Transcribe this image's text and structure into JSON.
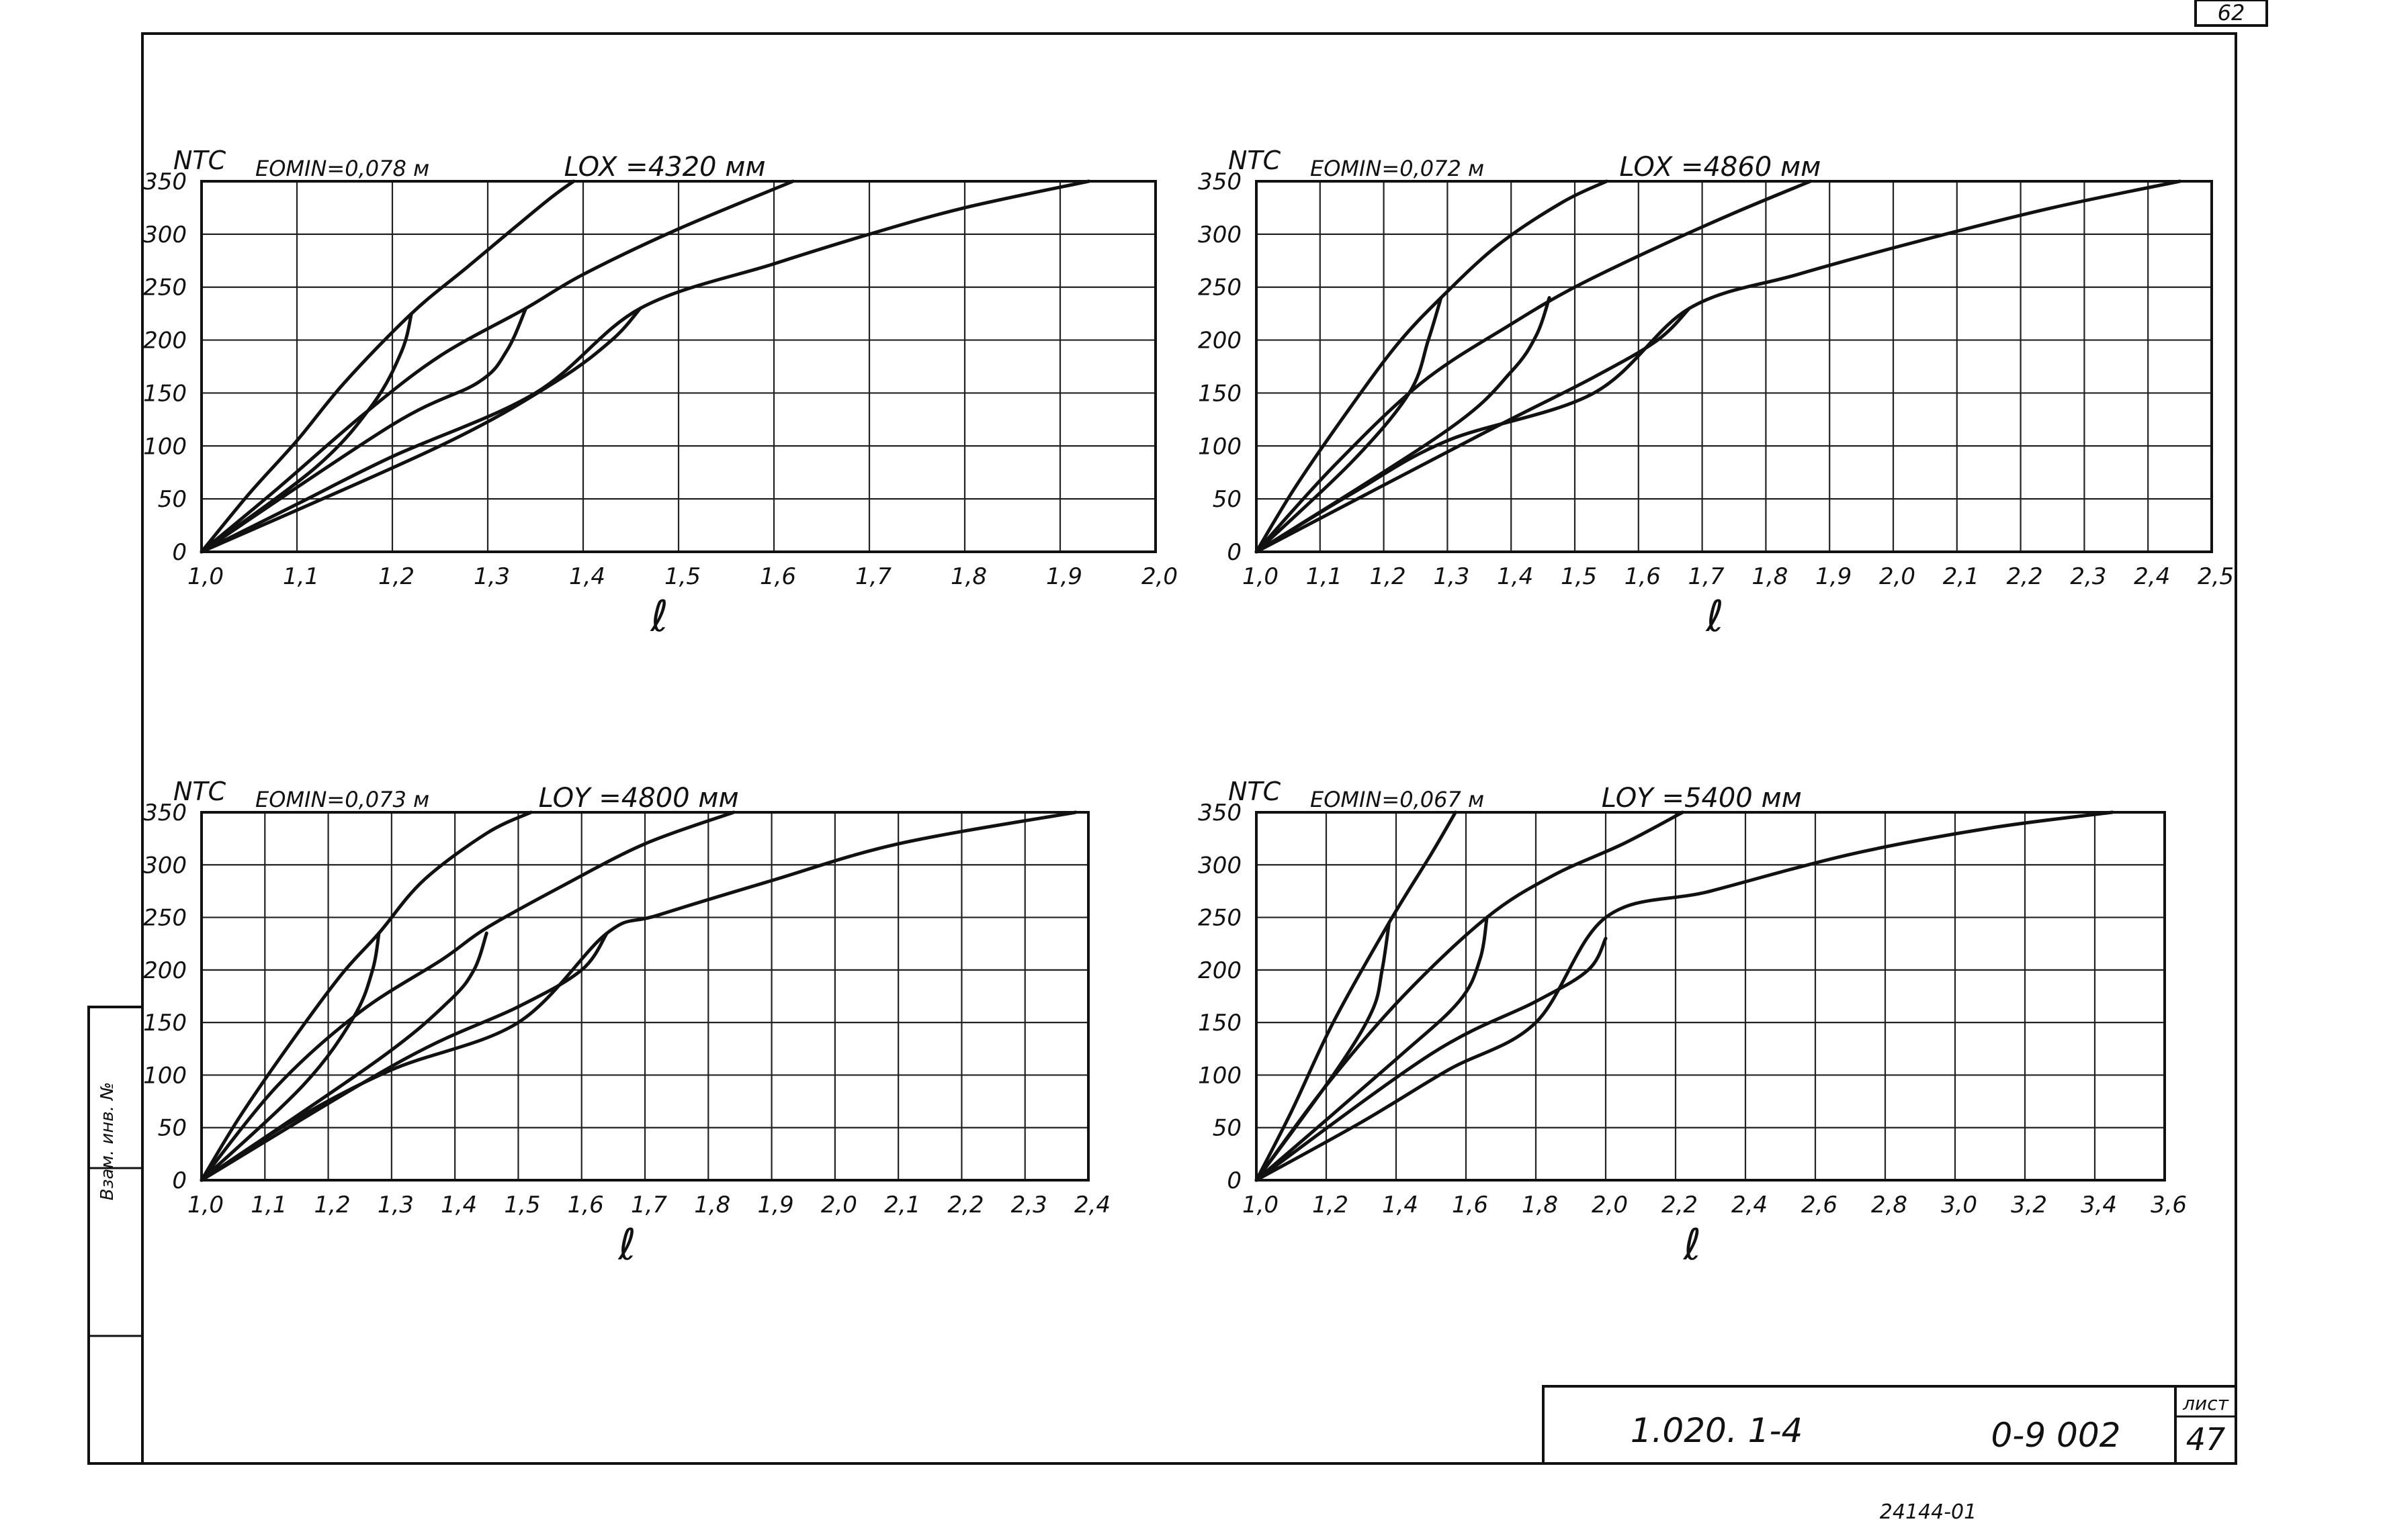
{
  "sheet": {
    "corner_number": "62",
    "stamp_code": "1.020. 1-4",
    "stamp_doc": "0-9 002",
    "stamp_sheet_label": "лист",
    "stamp_sheet_no": "47",
    "bottom_note": "24144-01",
    "side_note": "Взам. инв. №"
  },
  "chart_data": [
    {
      "type": "line",
      "ylabel": "NТС",
      "xlabel": "ℓ",
      "emin_label": "EOMIN=0,078 м",
      "l_label": "LOX =4320 мм",
      "xlim": [
        1.0,
        2.0
      ],
      "ylim": [
        0,
        350
      ],
      "xticks": [
        1.0,
        1.1,
        1.2,
        1.3,
        1.4,
        1.5,
        1.6,
        1.7,
        1.8,
        1.9,
        2.0
      ],
      "xtick_labels": [
        "1,0",
        "1,1",
        "1,2",
        "1,3",
        "1,4",
        "1,5",
        "1,6",
        "1,7",
        "1,8",
        "1,9",
        "2,0"
      ],
      "yticks": [
        0,
        50,
        100,
        150,
        200,
        250,
        300,
        350
      ],
      "ytick_labels": [
        "0",
        "50",
        "100",
        "150",
        "200",
        "250",
        "300",
        "350"
      ],
      "series": [
        {
          "values": [
            [
              1.0,
              0
            ],
            [
              1.05,
              55
            ],
            [
              1.1,
              105
            ],
            [
              1.15,
              160
            ],
            [
              1.22,
              225
            ],
            [
              1.28,
              270
            ],
            [
              1.36,
              330
            ],
            [
              1.39,
              350
            ]
          ]
        },
        {
          "values": [
            [
              1.0,
              0
            ],
            [
              1.08,
              60
            ],
            [
              1.17,
              130
            ],
            [
              1.25,
              185
            ],
            [
              1.34,
              230
            ],
            [
              1.4,
              262
            ],
            [
              1.5,
              305
            ],
            [
              1.62,
              350
            ]
          ]
        },
        {
          "values": [
            [
              1.0,
              0
            ],
            [
              1.1,
              45
            ],
            [
              1.2,
              90
            ],
            [
              1.35,
              150
            ],
            [
              1.46,
              230
            ],
            [
              1.6,
              272
            ],
            [
              1.7,
              300
            ],
            [
              1.8,
              325
            ],
            [
              1.93,
              350
            ]
          ]
        },
        {
          "values": [
            [
              1.22,
              225
            ],
            [
              1.21,
              190
            ],
            [
              1.18,
              140
            ],
            [
              1.12,
              80
            ],
            [
              1.0,
              0
            ]
          ]
        },
        {
          "values": [
            [
              1.34,
              230
            ],
            [
              1.32,
              190
            ],
            [
              1.29,
              160
            ],
            [
              1.2,
              120
            ],
            [
              1.0,
              0
            ]
          ]
        },
        {
          "values": [
            [
              1.46,
              230
            ],
            [
              1.43,
              200
            ],
            [
              1.37,
              160
            ],
            [
              1.25,
              100
            ],
            [
              1.0,
              0
            ]
          ]
        }
      ]
    },
    {
      "type": "line",
      "ylabel": "NТС",
      "xlabel": "ℓ",
      "emin_label": "EOMIN=0,072 м",
      "l_label": "LOX =4860 мм",
      "xlim": [
        1.0,
        2.5
      ],
      "ylim": [
        0,
        350
      ],
      "xticks": [
        1.0,
        1.1,
        1.2,
        1.3,
        1.4,
        1.5,
        1.6,
        1.7,
        1.8,
        1.9,
        2.0,
        2.1,
        2.2,
        2.3,
        2.4,
        2.5
      ],
      "xtick_labels": [
        "1,0",
        "1,1",
        "1,2",
        "1,3",
        "1,4",
        "1,5",
        "1,6",
        "1,7",
        "1,8",
        "1,9",
        "2,0",
        "2,1",
        "2,2",
        "2,3",
        "2,4",
        "2,5"
      ],
      "yticks": [
        0,
        50,
        100,
        150,
        200,
        250,
        300,
        350
      ],
      "ytick_labels": [
        "0",
        "50",
        "100",
        "150",
        "200",
        "250",
        "300",
        "350"
      ],
      "series": [
        {
          "values": [
            [
              1.0,
              0
            ],
            [
              1.06,
              60
            ],
            [
              1.14,
              130
            ],
            [
              1.22,
              195
            ],
            [
              1.29,
              240
            ],
            [
              1.38,
              290
            ],
            [
              1.48,
              330
            ],
            [
              1.55,
              350
            ]
          ]
        },
        {
          "values": [
            [
              1.0,
              0
            ],
            [
              1.12,
              80
            ],
            [
              1.26,
              160
            ],
            [
              1.4,
              215
            ],
            [
              1.5,
              250
            ],
            [
              1.62,
              285
            ],
            [
              1.75,
              320
            ],
            [
              1.87,
              350
            ]
          ]
        },
        {
          "values": [
            [
              1.0,
              0
            ],
            [
              1.15,
              55
            ],
            [
              1.3,
              105
            ],
            [
              1.53,
              150
            ],
            [
              1.68,
              230
            ],
            [
              1.85,
              262
            ],
            [
              2.05,
              295
            ],
            [
              2.25,
              325
            ],
            [
              2.45,
              350
            ]
          ]
        },
        {
          "values": [
            [
              1.29,
              240
            ],
            [
              1.27,
              200
            ],
            [
              1.24,
              150
            ],
            [
              1.15,
              85
            ],
            [
              1.0,
              0
            ]
          ]
        },
        {
          "values": [
            [
              1.46,
              240
            ],
            [
              1.44,
              205
            ],
            [
              1.4,
              170
            ],
            [
              1.3,
              115
            ],
            [
              1.0,
              0
            ]
          ]
        },
        {
          "values": [
            [
              1.68,
              230
            ],
            [
              1.63,
              200
            ],
            [
              1.53,
              165
            ],
            [
              1.35,
              110
            ],
            [
              1.0,
              0
            ]
          ]
        }
      ]
    },
    {
      "type": "line",
      "ylabel": "NТС",
      "xlabel": "ℓ",
      "emin_label": "EOMIN=0,073 м",
      "l_label": "LOY =4800 мм",
      "xlim": [
        1.0,
        2.4
      ],
      "ylim": [
        0,
        350
      ],
      "xticks": [
        1.0,
        1.1,
        1.2,
        1.3,
        1.4,
        1.5,
        1.6,
        1.7,
        1.8,
        1.9,
        2.0,
        2.1,
        2.2,
        2.3,
        2.4
      ],
      "xtick_labels": [
        "1,0",
        "1,1",
        "1,2",
        "1,3",
        "1,4",
        "1,5",
        "1,6",
        "1,7",
        "1,8",
        "1,9",
        "2,0",
        "2,1",
        "2,2",
        "2,3",
        "2,4"
      ],
      "yticks": [
        0,
        50,
        100,
        150,
        200,
        250,
        300,
        350
      ],
      "ytick_labels": [
        "0",
        "50",
        "100",
        "150",
        "200",
        "250",
        "300",
        "350"
      ],
      "series": [
        {
          "values": [
            [
              1.0,
              0
            ],
            [
              1.06,
              60
            ],
            [
              1.14,
              130
            ],
            [
              1.22,
              195
            ],
            [
              1.28,
              235
            ],
            [
              1.35,
              285
            ],
            [
              1.45,
              330
            ],
            [
              1.52,
              350
            ]
          ]
        },
        {
          "values": [
            [
              1.0,
              0
            ],
            [
              1.12,
              90
            ],
            [
              1.25,
              160
            ],
            [
              1.38,
              210
            ],
            [
              1.45,
              240
            ],
            [
              1.57,
              280
            ],
            [
              1.7,
              320
            ],
            [
              1.84,
              350
            ]
          ]
        },
        {
          "values": [
            [
              1.0,
              0
            ],
            [
              1.14,
              55
            ],
            [
              1.3,
              105
            ],
            [
              1.5,
              150
            ],
            [
              1.64,
              235
            ],
            [
              1.72,
              252
            ],
            [
              1.9,
              285
            ],
            [
              2.1,
              320
            ],
            [
              2.38,
              350
            ]
          ]
        },
        {
          "values": [
            [
              1.28,
              235
            ],
            [
              1.27,
              200
            ],
            [
              1.24,
              155
            ],
            [
              1.16,
              90
            ],
            [
              1.0,
              0
            ]
          ]
        },
        {
          "values": [
            [
              1.45,
              235
            ],
            [
              1.43,
              200
            ],
            [
              1.39,
              170
            ],
            [
              1.28,
              115
            ],
            [
              1.0,
              0
            ]
          ]
        },
        {
          "values": [
            [
              1.64,
              235
            ],
            [
              1.6,
              200
            ],
            [
              1.5,
              165
            ],
            [
              1.32,
              115
            ],
            [
              1.0,
              0
            ]
          ]
        }
      ]
    },
    {
      "type": "line",
      "ylabel": "NТС",
      "xlabel": "ℓ",
      "emin_label": "EOMIN=0,067 м",
      "l_label": "LOY =5400 мм",
      "xlim": [
        1.0,
        3.6
      ],
      "ylim": [
        0,
        350
      ],
      "xticks": [
        1.0,
        1.2,
        1.4,
        1.6,
        1.8,
        2.0,
        2.2,
        2.4,
        2.6,
        2.8,
        3.0,
        3.2,
        3.4,
        3.6
      ],
      "xtick_labels": [
        "1,0",
        "1,2",
        "1,4",
        "1,6",
        "1,8",
        "2,0",
        "2,2",
        "2,4",
        "2,6",
        "2,8",
        "3,0",
        "3,2",
        "3,4",
        "3,6"
      ],
      "yticks": [
        0,
        50,
        100,
        150,
        200,
        250,
        300,
        350
      ],
      "ytick_labels": [
        "0",
        "50",
        "100",
        "150",
        "200",
        "250",
        "300",
        "350"
      ],
      "series": [
        {
          "values": [
            [
              1.0,
              0
            ],
            [
              1.1,
              65
            ],
            [
              1.22,
              150
            ],
            [
              1.38,
              245
            ],
            [
              1.5,
              310
            ],
            [
              1.57,
              350
            ]
          ]
        },
        {
          "values": [
            [
              1.0,
              0
            ],
            [
              1.2,
              90
            ],
            [
              1.42,
              175
            ],
            [
              1.66,
              250
            ],
            [
              1.85,
              290
            ],
            [
              2.05,
              320
            ],
            [
              2.22,
              350
            ]
          ]
        },
        {
          "values": [
            [
              1.0,
              0
            ],
            [
              1.3,
              55
            ],
            [
              1.55,
              105
            ],
            [
              1.8,
              150
            ],
            [
              2.0,
              250
            ],
            [
              2.3,
              275
            ],
            [
              2.7,
              310
            ],
            [
              3.1,
              335
            ],
            [
              3.45,
              350
            ]
          ]
        },
        {
          "values": [
            [
              1.38,
              245
            ],
            [
              1.36,
              200
            ],
            [
              1.33,
              160
            ],
            [
              1.22,
              100
            ],
            [
              1.0,
              0
            ]
          ]
        },
        {
          "values": [
            [
              1.66,
              250
            ],
            [
              1.64,
              210
            ],
            [
              1.58,
              170
            ],
            [
              1.4,
              115
            ],
            [
              1.0,
              0
            ]
          ]
        },
        {
          "values": [
            [
              2.0,
              230
            ],
            [
              1.95,
              200
            ],
            [
              1.8,
              170
            ],
            [
              1.5,
              120
            ],
            [
              1.0,
              0
            ]
          ]
        }
      ]
    }
  ]
}
